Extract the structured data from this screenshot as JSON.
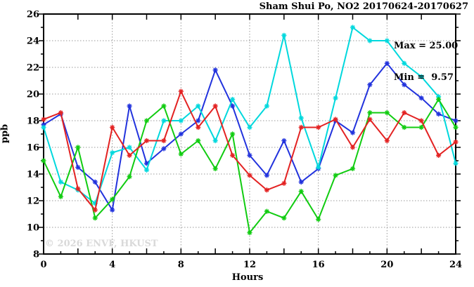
{
  "title": "Sham Shui Po, NO2 20170624-20170627",
  "stats_box": {
    "max_label": "Max = 25.00",
    "min_label": "Min =  9.57"
  },
  "watermark": "© 2026 ENVF, HKUST",
  "chart_data": {
    "type": "line",
    "title": "Sham Shui Po, NO2 20170624-20170627",
    "xlabel": "Hours",
    "ylabel": "ppb",
    "xlim": [
      0,
      24
    ],
    "ylim": [
      8,
      26
    ],
    "x_major_ticks": [
      0,
      4,
      8,
      12,
      16,
      20,
      24
    ],
    "y_major_ticks": [
      8,
      10,
      12,
      14,
      16,
      18,
      20,
      22,
      24,
      26
    ],
    "x_gridlines": [
      4,
      8,
      12,
      16,
      20
    ],
    "y_gridlines": [
      10,
      12,
      14,
      16,
      18,
      20,
      22,
      24
    ],
    "grid": true,
    "legend_position": "none",
    "marker": "asterisk",
    "x": [
      0,
      1,
      2,
      3,
      4,
      5,
      6,
      7,
      8,
      9,
      10,
      11,
      12,
      13,
      14,
      15,
      16,
      17,
      18,
      19,
      20,
      21,
      22,
      23,
      24
    ],
    "series": [
      {
        "name": "blue",
        "color": "#2233dd",
        "values": [
          17.7,
          18.5,
          14.5,
          13.4,
          11.3,
          19.1,
          14.8,
          15.9,
          17.0,
          18.0,
          21.8,
          19.1,
          15.4,
          13.9,
          16.5,
          13.4,
          14.4,
          18.0,
          17.1,
          20.7,
          22.3,
          20.7,
          19.7,
          18.5,
          18.0
        ]
      },
      {
        "name": "cyan",
        "color": "#00d8dd",
        "values": [
          17.5,
          13.4,
          12.8,
          11.8,
          15.6,
          16.0,
          14.3,
          18.0,
          18.0,
          19.1,
          16.5,
          19.6,
          17.5,
          19.1,
          24.4,
          18.2,
          14.5,
          19.7,
          25.0,
          24.0,
          24.0,
          22.3,
          21.3,
          19.8,
          14.8
        ]
      },
      {
        "name": "green",
        "color": "#11cc11",
        "values": [
          15.0,
          12.3,
          16.0,
          10.7,
          12.1,
          13.8,
          18.0,
          19.1,
          15.5,
          16.5,
          14.4,
          17.0,
          9.6,
          11.2,
          10.7,
          12.7,
          10.6,
          13.9,
          14.4,
          18.6,
          18.6,
          17.5,
          17.5,
          19.6,
          17.5
        ]
      },
      {
        "name": "red",
        "color": "#e32222",
        "values": [
          18.1,
          18.6,
          12.9,
          11.3,
          17.5,
          15.4,
          16.5,
          16.5,
          20.2,
          17.5,
          19.1,
          15.4,
          13.9,
          12.8,
          13.3,
          17.5,
          17.5,
          18.1,
          16.0,
          18.1,
          16.5,
          18.6,
          18.0,
          15.4,
          16.4
        ]
      }
    ],
    "annotations": {
      "max": 25.0,
      "min": 9.57
    }
  },
  "style": {
    "grid_color": "#999999",
    "axis_color": "#000000",
    "background": "#ffffff"
  }
}
